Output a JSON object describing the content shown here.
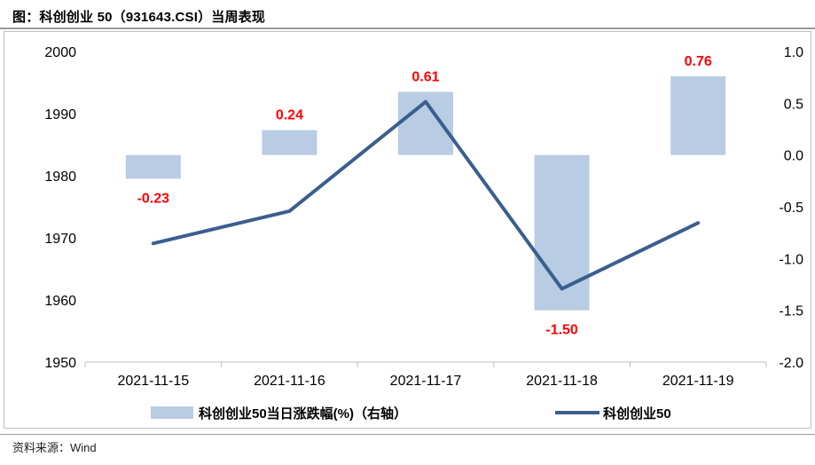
{
  "title": "图：科创创业 50（931643.CSI）当周表现",
  "source": "资料来源：Wind",
  "chart_data": {
    "type": "bar+line",
    "categories": [
      "2021-11-15",
      "2021-11-16",
      "2021-11-17",
      "2021-11-18",
      "2021-11-19"
    ],
    "bar_series": {
      "name": "科创创业50当日涨跌幅(%)（右轴）",
      "axis": "right",
      "values": [
        -0.23,
        0.24,
        0.61,
        -1.5,
        0.76
      ],
      "labels": [
        "-0.23",
        "0.24",
        "0.61",
        "-1.50",
        "0.76"
      ],
      "color": "#b8cce4",
      "label_color": "#ff0000"
    },
    "line_series": {
      "name": "科创创业50",
      "axis": "left",
      "values": [
        1969.1,
        1974.3,
        1991.9,
        1961.8,
        1972.4
      ],
      "color": "#3a5f8f"
    },
    "left_axis": {
      "ylim": [
        1950,
        2000
      ],
      "ticks": [
        "2000",
        "1990",
        "1980",
        "1970",
        "1960",
        "1950"
      ]
    },
    "right_axis": {
      "ylim": [
        -2.0,
        1.0
      ],
      "ticks": [
        "1.0",
        "0.5",
        "0.0",
        "-0.5",
        "-1.0",
        "-1.5",
        "-2.0"
      ]
    },
    "legend_position": "bottom",
    "grid": false
  }
}
